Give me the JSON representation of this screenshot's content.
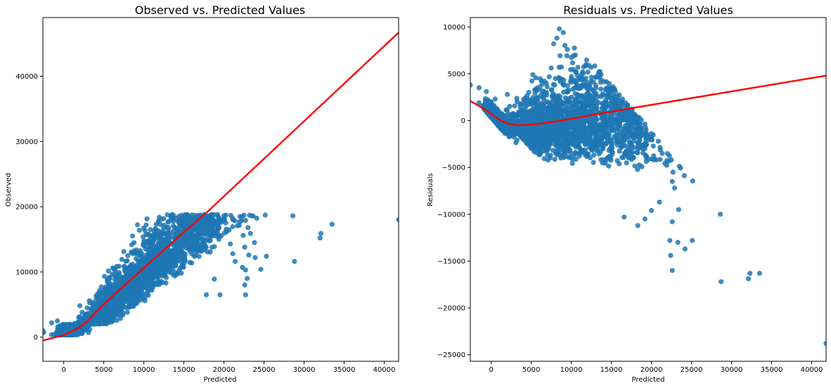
{
  "chart_data": [
    {
      "type": "scatter",
      "title": "Observed vs. Predicted Values",
      "xlabel": "Predicted",
      "ylabel": "Observed",
      "xlim": [
        -2600,
        41800
      ],
      "ylim": [
        -3700,
        49000
      ],
      "xticks": [
        0,
        5000,
        10000,
        15000,
        20000,
        25000,
        30000,
        35000,
        40000
      ],
      "xtick_labels": [
        "0",
        "5000",
        "10000",
        "15000",
        "20000",
        "25000",
        "30000",
        "35000",
        "40000"
      ],
      "yticks": [
        0,
        10000,
        20000,
        30000,
        40000
      ],
      "ytick_labels": [
        "0",
        "10000",
        "20000",
        "30000",
        "40000"
      ],
      "grid": false,
      "point_color": "#1f77b4",
      "line_color": "#ff0000",
      "outlier_points": [
        {
          "x": 22500,
          "y": 18700
        },
        {
          "x": 23200,
          "y": 18700
        },
        {
          "x": 22700,
          "y": 17900
        },
        {
          "x": 23000,
          "y": 16800
        },
        {
          "x": 22400,
          "y": 15600
        },
        {
          "x": 23300,
          "y": 15900
        },
        {
          "x": 23800,
          "y": 14500
        },
        {
          "x": 22600,
          "y": 13800
        },
        {
          "x": 23100,
          "y": 12600
        },
        {
          "x": 23900,
          "y": 12200
        },
        {
          "x": 25300,
          "y": 12400
        },
        {
          "x": 22300,
          "y": 10700
        },
        {
          "x": 22700,
          "y": 10300
        },
        {
          "x": 24600,
          "y": 10400
        },
        {
          "x": 22900,
          "y": 9000
        },
        {
          "x": 22600,
          "y": 8000
        },
        {
          "x": 22700,
          "y": 6500
        },
        {
          "x": 21100,
          "y": 12800
        },
        {
          "x": 21400,
          "y": 11600
        },
        {
          "x": 20800,
          "y": 14300
        },
        {
          "x": 28600,
          "y": 18600
        },
        {
          "x": 28800,
          "y": 11600
        },
        {
          "x": 32100,
          "y": 15900
        },
        {
          "x": 32000,
          "y": 15200
        },
        {
          "x": 33500,
          "y": 17300
        },
        {
          "x": 41800,
          "y": 18000
        },
        {
          "x": -2600,
          "y": 1000
        },
        {
          "x": -2500,
          "y": 700
        },
        {
          "x": -1500,
          "y": 2200
        },
        {
          "x": -800,
          "y": 2500
        },
        {
          "x": 19500,
          "y": 6500
        },
        {
          "x": 18800,
          "y": 8900
        },
        {
          "x": 17800,
          "y": 6500
        }
      ],
      "trend_line": {
        "x": [
          -2600,
          0,
          2000,
          3000,
          4000,
          6000,
          8000,
          10000,
          12000,
          14000,
          16000,
          18000,
          41800
        ],
        "y": [
          -500,
          300,
          1500,
          2500,
          3800,
          6200,
          8400,
          10600,
          12800,
          15000,
          17200,
          19300,
          46700
        ]
      }
    },
    {
      "type": "scatter",
      "title": "Residuals vs. Predicted Values",
      "xlabel": "Predicted",
      "ylabel": "Residuals",
      "xlim": [
        -2600,
        41800
      ],
      "ylim": [
        -25700,
        11000
      ],
      "xticks": [
        0,
        5000,
        10000,
        15000,
        20000,
        25000,
        30000,
        35000,
        40000
      ],
      "xtick_labels": [
        "0",
        "5000",
        "10000",
        "15000",
        "20000",
        "25000",
        "30000",
        "35000",
        "40000"
      ],
      "yticks": [
        10000,
        5000,
        0,
        -5000,
        -10000,
        -15000,
        -20000,
        -25000
      ],
      "ytick_labels": [
        "10000",
        "5000",
        "0",
        "−5000",
        "−10000",
        "−15000",
        "−20000",
        "−25000"
      ],
      "grid": false,
      "point_color": "#1f77b4",
      "line_color": "#ff0000",
      "outlier_points": [
        {
          "x": 8500,
          "y": 9800
        },
        {
          "x": 9000,
          "y": 9400
        },
        {
          "x": 8200,
          "y": 8800
        },
        {
          "x": 7800,
          "y": 8200
        },
        {
          "x": 9500,
          "y": 7600
        },
        {
          "x": 10500,
          "y": 7000
        },
        {
          "x": 22500,
          "y": -4200
        },
        {
          "x": 22700,
          "y": -5500
        },
        {
          "x": 22600,
          "y": -6500
        },
        {
          "x": 22900,
          "y": -7200
        },
        {
          "x": 23400,
          "y": -9500
        },
        {
          "x": 22600,
          "y": -10800
        },
        {
          "x": 22300,
          "y": -12800
        },
        {
          "x": 23300,
          "y": -13000
        },
        {
          "x": 24200,
          "y": -13700
        },
        {
          "x": 25100,
          "y": -12800
        },
        {
          "x": 22400,
          "y": -14400
        },
        {
          "x": 22600,
          "y": -16000
        },
        {
          "x": 21000,
          "y": -8700
        },
        {
          "x": 20000,
          "y": -9600
        },
        {
          "x": 19200,
          "y": -10500
        },
        {
          "x": 18300,
          "y": -11200
        },
        {
          "x": 16600,
          "y": -10300
        },
        {
          "x": 28600,
          "y": -10000
        },
        {
          "x": 28700,
          "y": -17200
        },
        {
          "x": 32100,
          "y": -16900
        },
        {
          "x": 32300,
          "y": -16300
        },
        {
          "x": 33500,
          "y": -16300
        },
        {
          "x": 41800,
          "y": -23800
        },
        {
          "x": -2600,
          "y": 3800
        },
        {
          "x": -1500,
          "y": 3500
        },
        {
          "x": -600,
          "y": 3100
        },
        {
          "x": 500,
          "y": 2300
        },
        {
          "x": 3800,
          "y": 1800
        },
        {
          "x": 5200,
          "y": 4900
        },
        {
          "x": 6200,
          "y": 2700
        },
        {
          "x": 7000,
          "y": 3600
        }
      ],
      "trend_line": {
        "x": [
          -2600,
          -1000,
          0,
          1000,
          2000,
          3000,
          4000,
          6000,
          8000,
          10000,
          14000,
          18000,
          41800
        ],
        "y": [
          2100,
          1300,
          700,
          100,
          -300,
          -500,
          -500,
          -350,
          -100,
          200,
          800,
          1400,
          4800
        ]
      }
    }
  ]
}
